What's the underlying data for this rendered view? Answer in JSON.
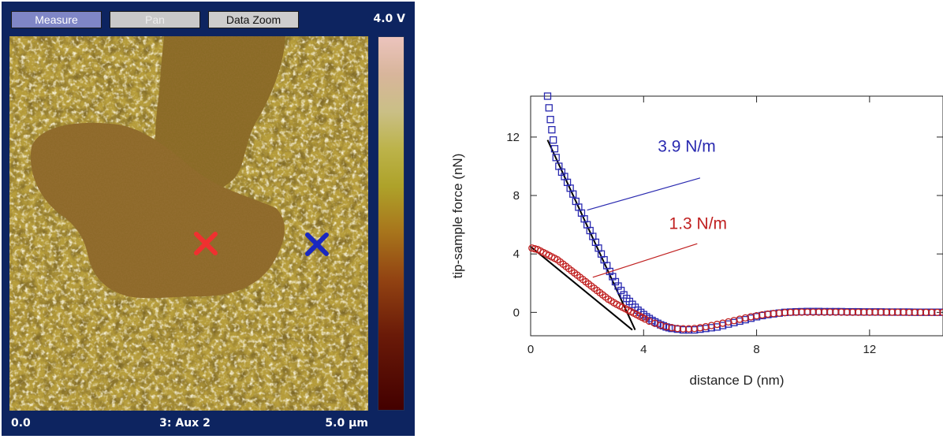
{
  "toolbar": {
    "measure_label": "Measure",
    "pan_label": "Pan",
    "datazoom_label": "Data Zoom",
    "scale_max": "4.0 V"
  },
  "afm_footer": {
    "left": "0.0",
    "center": "3: Aux 2",
    "right": "5.0 µm"
  },
  "colors": {
    "panel_bg": "#0d2460",
    "blue_series": "#2a2ab0",
    "red_series": "#c02020",
    "fit_line": "#000000"
  },
  "chart_data": {
    "type": "scatter",
    "xlabel": "distance D (nm)",
    "ylabel": "tip-sample force (nN)",
    "xlim": [
      0,
      14.6
    ],
    "ylim": [
      -1.6,
      14.8
    ],
    "xticks": [
      0,
      4,
      8,
      12
    ],
    "yticks": [
      0,
      4,
      8,
      12
    ],
    "grid": false,
    "series": [
      {
        "name": "3.9 N/m",
        "color": "#2a2ab0",
        "marker": "square",
        "x": [
          0.6,
          0.65,
          0.7,
          0.75,
          0.8,
          0.85,
          0.9,
          1.0,
          1.1,
          1.2,
          1.3,
          1.4,
          1.5,
          1.6,
          1.7,
          1.8,
          1.9,
          2.0,
          2.1,
          2.2,
          2.3,
          2.4,
          2.5,
          2.6,
          2.7,
          2.8,
          2.9,
          3.0,
          3.1,
          3.2,
          3.3,
          3.4,
          3.5,
          3.6,
          3.7,
          3.8,
          3.9,
          4.0,
          4.1,
          4.2,
          4.3,
          4.4,
          4.5,
          4.6,
          4.7,
          4.8,
          4.9,
          5.0,
          5.2,
          5.4,
          5.6,
          5.8,
          6.0,
          6.2,
          6.4,
          6.6,
          6.8,
          7.0,
          7.2,
          7.4,
          7.6,
          7.8,
          8.0,
          8.2,
          8.4,
          8.6,
          8.8,
          9.0,
          9.2,
          9.4,
          9.6,
          9.8,
          10.0,
          10.2,
          10.4,
          10.6,
          10.8,
          11.0,
          11.2,
          11.4,
          11.6,
          11.8,
          12.0,
          12.2,
          12.4,
          12.6,
          12.8,
          13.0,
          13.2,
          13.4,
          13.6,
          13.8,
          14.0,
          14.2,
          14.4,
          14.6
        ],
        "y": [
          14.8,
          14.0,
          13.2,
          12.5,
          11.8,
          11.2,
          10.6,
          10.0,
          9.6,
          9.3,
          8.9,
          8.5,
          8.1,
          7.6,
          7.2,
          6.8,
          6.4,
          6.0,
          5.6,
          5.2,
          4.8,
          4.4,
          4.0,
          3.6,
          3.2,
          2.8,
          2.45,
          2.1,
          1.8,
          1.5,
          1.2,
          0.95,
          0.75,
          0.55,
          0.35,
          0.15,
          0.0,
          -0.15,
          -0.3,
          -0.42,
          -0.55,
          -0.65,
          -0.75,
          -0.85,
          -0.92,
          -1.0,
          -1.05,
          -1.1,
          -1.15,
          -1.2,
          -1.2,
          -1.2,
          -1.15,
          -1.1,
          -1.05,
          -1.0,
          -0.9,
          -0.8,
          -0.7,
          -0.6,
          -0.5,
          -0.4,
          -0.3,
          -0.22,
          -0.15,
          -0.1,
          -0.05,
          0.0,
          0.02,
          0.04,
          0.05,
          0.06,
          0.06,
          0.06,
          0.05,
          0.05,
          0.05,
          0.05,
          0.04,
          0.04,
          0.04,
          0.03,
          0.03,
          0.03,
          0.03,
          0.02,
          0.02,
          0.02,
          0.02,
          0.02,
          0.01,
          0.01,
          0.01,
          0.01,
          0.01,
          0.01
        ]
      },
      {
        "name": "1.3 N/m",
        "color": "#c02020",
        "marker": "circle",
        "x": [
          0.05,
          0.15,
          0.25,
          0.35,
          0.45,
          0.55,
          0.65,
          0.75,
          0.85,
          0.95,
          1.05,
          1.15,
          1.25,
          1.35,
          1.45,
          1.55,
          1.65,
          1.75,
          1.85,
          1.95,
          2.05,
          2.15,
          2.25,
          2.35,
          2.45,
          2.55,
          2.65,
          2.75,
          2.85,
          2.95,
          3.05,
          3.15,
          3.25,
          3.35,
          3.45,
          3.55,
          3.65,
          3.75,
          3.85,
          3.95,
          4.05,
          4.2,
          4.4,
          4.6,
          4.8,
          5.0,
          5.2,
          5.4,
          5.6,
          5.8,
          6.0,
          6.2,
          6.4,
          6.6,
          6.8,
          7.0,
          7.2,
          7.4,
          7.6,
          7.8,
          8.0,
          8.2,
          8.4,
          8.6,
          8.8,
          9.0,
          9.2,
          9.4,
          9.6,
          9.8,
          10.0,
          10.2,
          10.4,
          10.6,
          10.8,
          11.0,
          11.2,
          11.4,
          11.6,
          11.8,
          12.0,
          12.2,
          12.4,
          12.6,
          12.8,
          13.0,
          13.2,
          13.4,
          13.6,
          13.8,
          14.0,
          14.2,
          14.4,
          14.6
        ],
        "y": [
          4.4,
          4.35,
          4.3,
          4.2,
          4.1,
          4.0,
          3.9,
          3.8,
          3.7,
          3.6,
          3.45,
          3.3,
          3.15,
          3.0,
          2.85,
          2.7,
          2.55,
          2.4,
          2.25,
          2.1,
          1.95,
          1.8,
          1.65,
          1.5,
          1.35,
          1.2,
          1.05,
          0.9,
          0.78,
          0.66,
          0.55,
          0.45,
          0.35,
          0.25,
          0.15,
          0.05,
          -0.05,
          -0.15,
          -0.25,
          -0.35,
          -0.45,
          -0.6,
          -0.75,
          -0.88,
          -0.98,
          -1.05,
          -1.1,
          -1.12,
          -1.12,
          -1.1,
          -1.05,
          -0.98,
          -0.9,
          -0.82,
          -0.74,
          -0.65,
          -0.56,
          -0.47,
          -0.38,
          -0.3,
          -0.23,
          -0.17,
          -0.12,
          -0.08,
          -0.05,
          -0.02,
          0.0,
          0.01,
          0.02,
          0.02,
          0.02,
          0.02,
          0.02,
          0.02,
          0.02,
          0.02,
          0.01,
          0.01,
          0.01,
          0.01,
          0.01,
          0.01,
          0.01,
          0.01,
          0.01,
          0.01,
          0.01,
          0.0,
          0.0,
          0.0,
          0.0,
          0.0,
          0.0,
          0.0
        ]
      }
    ],
    "fit_lines": [
      {
        "series": "3.9 N/m",
        "x": [
          0.6,
          3.7
        ],
        "y": [
          11.8,
          -1.2
        ]
      },
      {
        "series": "1.3 N/m",
        "x": [
          0.0,
          3.6
        ],
        "y": [
          4.5,
          -1.2
        ]
      }
    ]
  }
}
